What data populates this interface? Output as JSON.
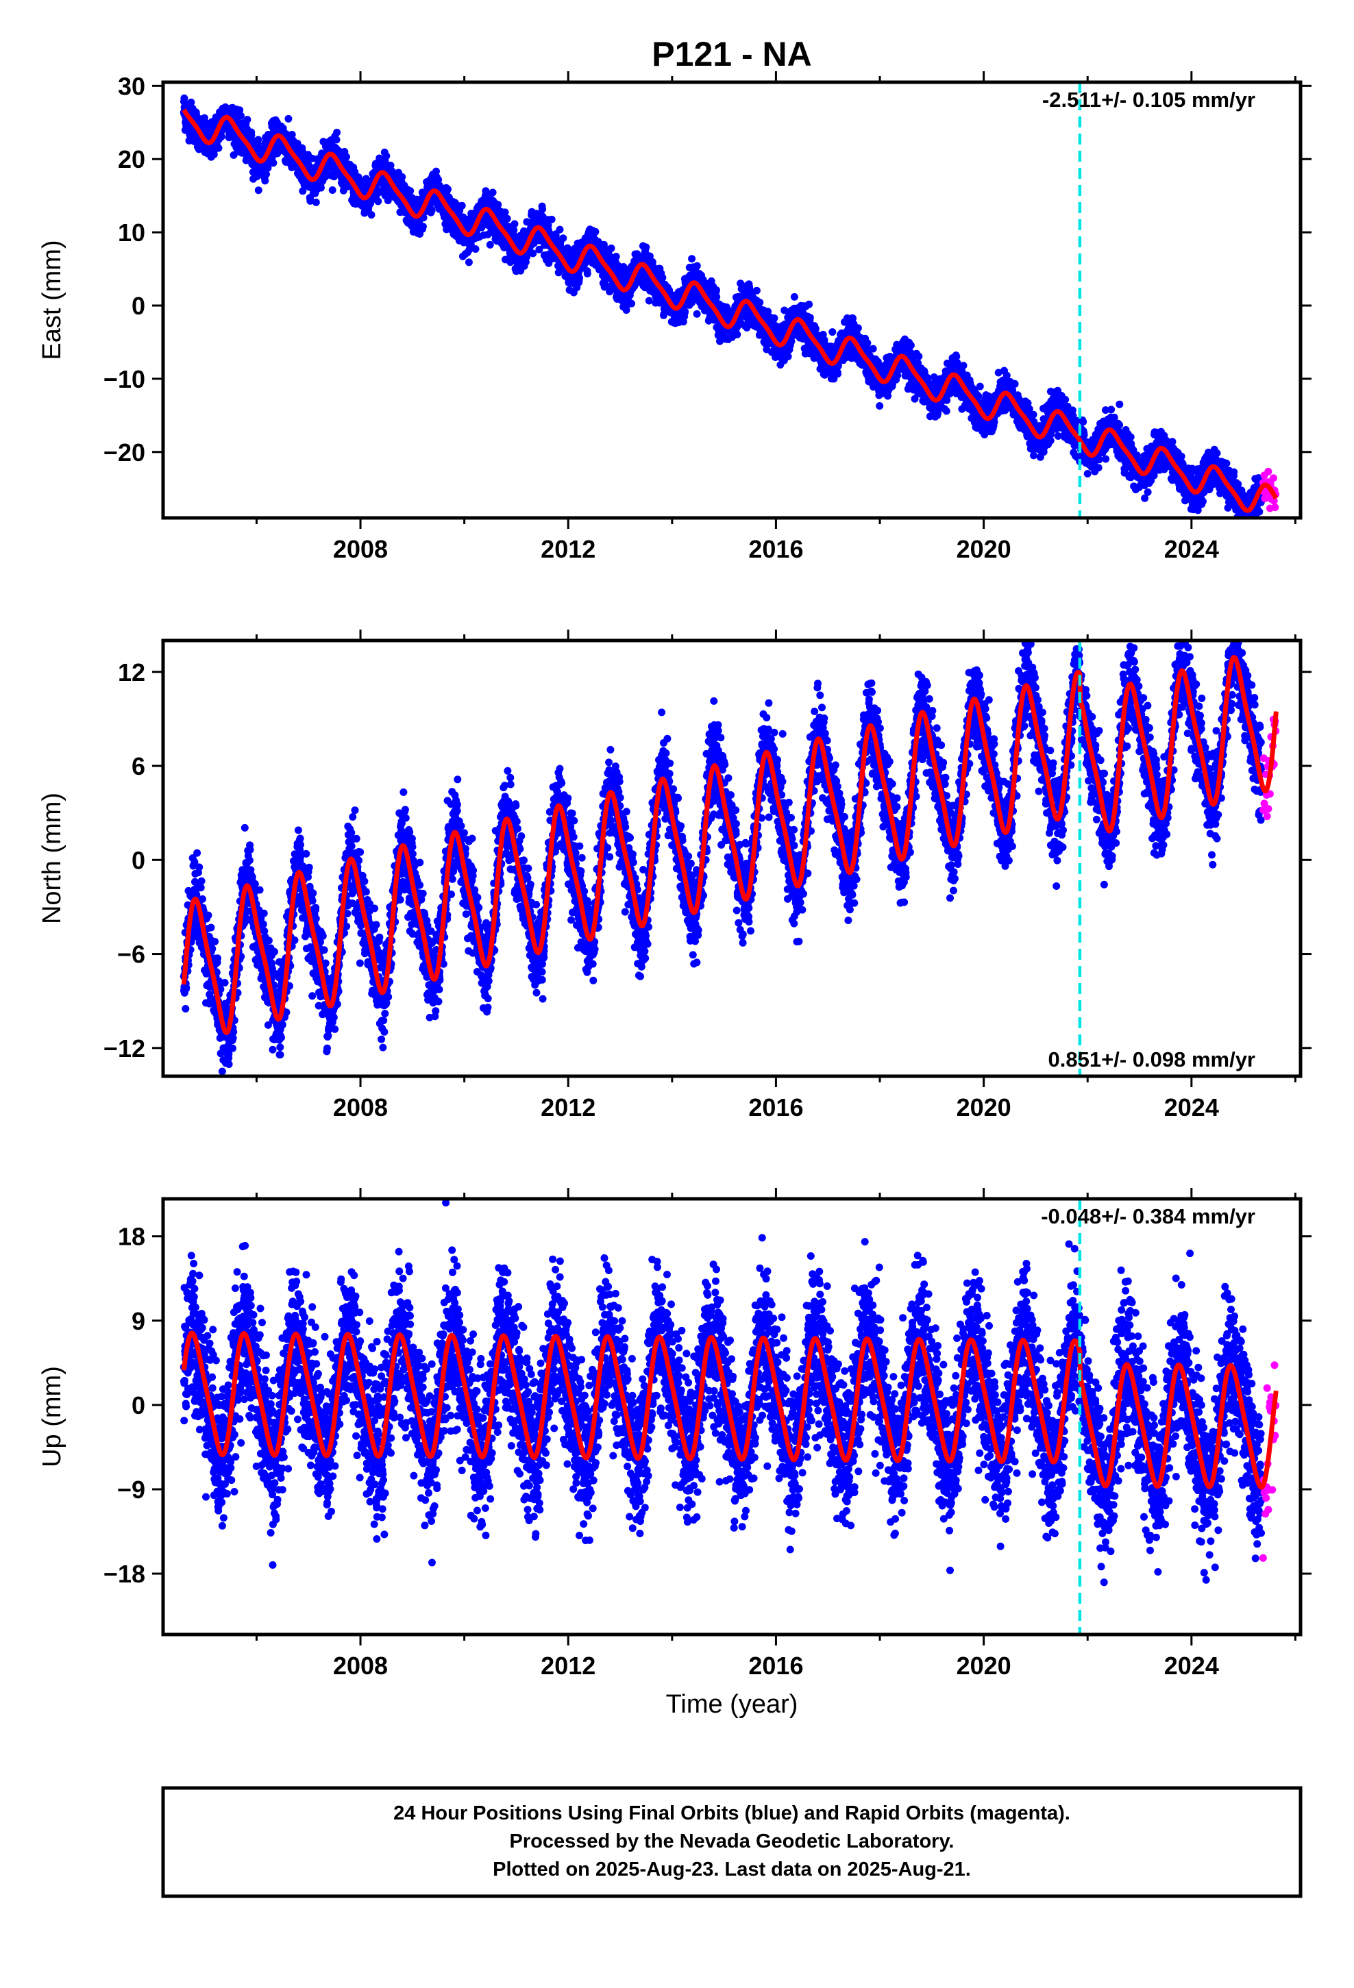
{
  "title": "P121 - NA",
  "xlabel": "Time (year)",
  "footer": {
    "line1": "24 Hour Positions Using Final Orbits (blue) and Rapid Orbits (magenta).",
    "line2": "Processed by the Nevada Geodetic Laboratory.",
    "line3": "Plotted on 2025-Aug-23. Last data on 2025-Aug-21."
  },
  "colors": {
    "final": "#0000ff",
    "rapid": "#ff00ff",
    "model": "#ff0000",
    "event_line": "#00e5e5",
    "frame": "#000000"
  },
  "chart_data": [
    {
      "type": "scatter",
      "component": "East",
      "ylabel": "East (mm)",
      "rate_label": "-2.511+/- 0.105 mm/yr",
      "rate_position": "top-right",
      "xlim": [
        2004.2,
        2026.1
      ],
      "ylim": [
        -29,
        30.5
      ],
      "xticks": [
        2008,
        2012,
        2016,
        2020,
        2024
      ],
      "yticks": [
        30,
        20,
        10,
        0,
        -10,
        -20
      ],
      "event_line_x": 2021.85,
      "model": {
        "x0": 2004.6,
        "y0": 25.6,
        "rate": -2.511,
        "annual_amp": 2.0,
        "annual_phase_year": 0.25,
        "semiannual_amp": 0.5
      },
      "data_span": [
        2004.6,
        2025.35
      ],
      "rapid_span": [
        2025.38,
        2025.63
      ],
      "scatter_sd": 1.2,
      "series": [
        {
          "name": "Final Orbits (blue)",
          "values": "dense daily positions from 2004.6 to 2025.4"
        },
        {
          "name": "Rapid Orbits (magenta)",
          "values": "daily positions 2025.4 to 2025.63"
        }
      ]
    },
    {
      "type": "scatter",
      "component": "North",
      "ylabel": "North (mm)",
      "rate_label": "0.851+/- 0.098 mm/yr",
      "rate_position": "bottom-right",
      "xlim": [
        2004.2,
        2026.1
      ],
      "ylim": [
        -13.8,
        14
      ],
      "xticks": [
        2008,
        2012,
        2016,
        2020,
        2024
      ],
      "yticks": [
        12,
        6,
        0,
        -6,
        -12
      ],
      "event_line_x": 2021.85,
      "model": {
        "x0": 2004.6,
        "y0": -7.2,
        "rate": 0.851,
        "annual_amp": 4.2,
        "annual_phase_year": 0.62,
        "semiannual_amp": 0.9,
        "offset_at_event": -1.6
      },
      "data_span": [
        2004.6,
        2025.35
      ],
      "rapid_span": [
        2025.38,
        2025.63
      ],
      "scatter_sd": 1.3,
      "series": [
        {
          "name": "Final Orbits (blue)",
          "values": "dense daily positions from 2004.6 to 2025.4"
        },
        {
          "name": "Rapid Orbits (magenta)",
          "values": "daily positions 2025.4 to 2025.63"
        }
      ]
    },
    {
      "type": "scatter",
      "component": "Up",
      "ylabel": "Up (mm)",
      "rate_label": "-0.048+/- 0.384 mm/yr",
      "rate_position": "top-right",
      "xlim": [
        2004.2,
        2026.1
      ],
      "ylim": [
        -24.5,
        22
      ],
      "xticks": [
        2008,
        2012,
        2016,
        2020,
        2024
      ],
      "yticks": [
        18,
        9,
        0,
        -9,
        -18
      ],
      "event_line_x": 2021.85,
      "model": {
        "x0": 2004.6,
        "y0": 1.2,
        "rate": -0.048,
        "annual_amp": 6.2,
        "annual_phase_year": 0.55,
        "semiannual_amp": 1.0,
        "offset_at_event": -2.5
      },
      "data_span": [
        2004.6,
        2025.35
      ],
      "rapid_span": [
        2025.38,
        2025.63
      ],
      "scatter_sd": 3.8,
      "series": [
        {
          "name": "Final Orbits (blue)",
          "values": "dense daily positions from 2004.6 to 2025.4"
        },
        {
          "name": "Rapid Orbits (magenta)",
          "values": "daily positions 2025.4 to 2025.63"
        }
      ]
    }
  ]
}
